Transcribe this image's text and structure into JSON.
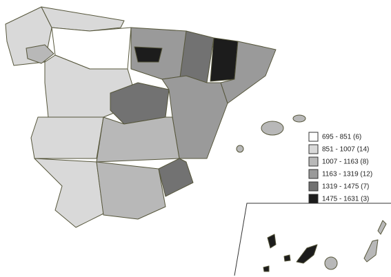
{
  "legend": {
    "items": [
      {
        "label": "695 - 851 (6)",
        "color": "#ffffff"
      },
      {
        "label": "851 - 1007 (14)",
        "color": "#d9d9d9"
      },
      {
        "label": "1007 - 1163 (8)",
        "color": "#b8b8b8"
      },
      {
        "label": "1163 - 1319 (12)",
        "color": "#9a9a9a"
      },
      {
        "label": "1319 - 1475 (7)",
        "color": "#727272"
      },
      {
        "label": "1475 - 1631 (3)",
        "color": "#1c1c1c"
      }
    ]
  }
}
